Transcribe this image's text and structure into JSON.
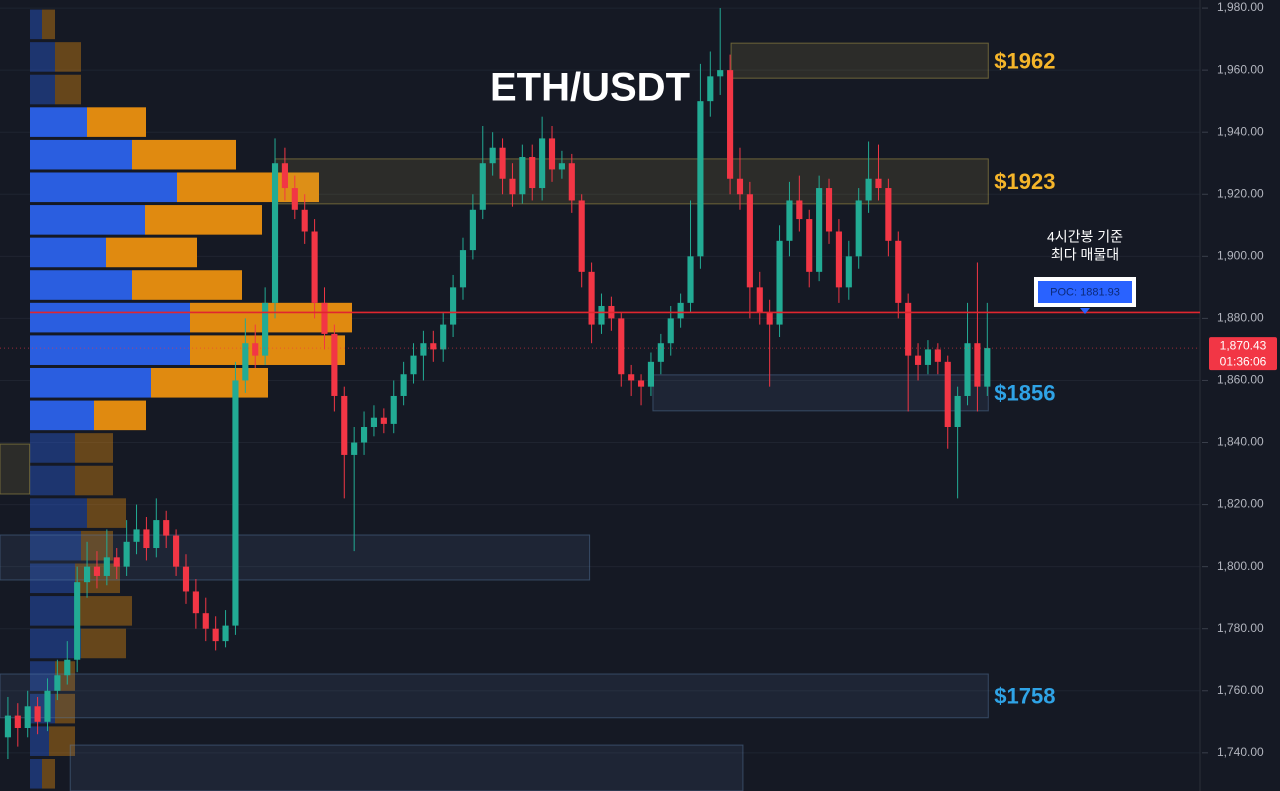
{
  "chart_data": {
    "type": "candlestick",
    "title": "ETH/USDT",
    "colors": {
      "up": "#22ab94",
      "down": "#f23645",
      "background": "#151924",
      "grid": "#1f2430",
      "axis_text": "#b2b5be"
    },
    "xlim": [
      -0.8,
      120.5
    ],
    "ylim": [
      1727.7,
      1982.6
    ],
    "yticks": [
      {
        "value": 1740,
        "label": "1,740.00"
      },
      {
        "value": 1760,
        "label": "1,760.00"
      },
      {
        "value": 1780,
        "label": "1,780.00"
      },
      {
        "value": 1800,
        "label": "1,800.00"
      },
      {
        "value": 1820,
        "label": "1,820.00"
      },
      {
        "value": 1840,
        "label": "1,840.00"
      },
      {
        "value": 1860,
        "label": "1,860.00"
      },
      {
        "value": 1880,
        "label": "1,880.00"
      },
      {
        "value": 1900,
        "label": "1,900.00"
      },
      {
        "value": 1920,
        "label": "1,920.00"
      },
      {
        "value": 1940,
        "label": "1,940.00"
      },
      {
        "value": 1960,
        "label": "1,960.00"
      },
      {
        "value": 1980,
        "label": "1,980.00"
      }
    ],
    "grid": true,
    "open": [
      1745,
      1752,
      1748,
      1755,
      1750,
      1760,
      1765,
      1770,
      1795,
      1800,
      1797,
      1803,
      1800,
      1808,
      1812,
      1806,
      1815,
      1810,
      1800,
      1792,
      1785,
      1780,
      1776,
      1781,
      1860,
      1872,
      1868,
      1885,
      1930,
      1922,
      1915,
      1908,
      1885,
      1875,
      1855,
      1836,
      1840,
      1845,
      1848,
      1846,
      1855,
      1862,
      1868,
      1872,
      1870,
      1878,
      1890,
      1902,
      1915,
      1930,
      1935,
      1925,
      1920,
      1932,
      1922,
      1938,
      1928,
      1930,
      1918,
      1895,
      1878,
      1884,
      1880,
      1862,
      1860,
      1858,
      1866,
      1872,
      1880,
      1885,
      1900,
      1950,
      1958,
      1960,
      1925,
      1920,
      1890,
      1882,
      1878,
      1905,
      1918,
      1912,
      1895,
      1922,
      1908,
      1890,
      1900,
      1918,
      1925,
      1922,
      1905,
      1885,
      1868,
      1865,
      1870,
      1866,
      1845,
      1855,
      1872,
      1858
    ],
    "high": [
      1758,
      1756,
      1760,
      1758,
      1764,
      1770,
      1776,
      1800,
      1808,
      1805,
      1812,
      1806,
      1815,
      1820,
      1816,
      1822,
      1818,
      1812,
      1804,
      1796,
      1790,
      1784,
      1786,
      1866,
      1880,
      1878,
      1890,
      1938,
      1935,
      1926,
      1920,
      1912,
      1890,
      1878,
      1858,
      1845,
      1850,
      1852,
      1851,
      1860,
      1866,
      1872,
      1876,
      1876,
      1882,
      1894,
      1906,
      1920,
      1942,
      1940,
      1938,
      1930,
      1936,
      1936,
      1945,
      1942,
      1934,
      1933,
      1920,
      1898,
      1888,
      1887,
      1882,
      1865,
      1862,
      1869,
      1875,
      1884,
      1888,
      1918,
      1962,
      1966,
      1980,
      1965,
      1935,
      1924,
      1895,
      1886,
      1910,
      1924,
      1926,
      1915,
      1926,
      1925,
      1912,
      1905,
      1922,
      1937,
      1936,
      1925,
      1908,
      1888,
      1872,
      1873,
      1872,
      1868,
      1858,
      1885,
      1898,
      1885
    ],
    "low": [
      1738,
      1742,
      1745,
      1746,
      1747,
      1757,
      1762,
      1766,
      1790,
      1793,
      1794,
      1796,
      1797,
      1804,
      1802,
      1803,
      1806,
      1797,
      1788,
      1780,
      1776,
      1773,
      1774,
      1778,
      1856,
      1864,
      1865,
      1880,
      1918,
      1912,
      1904,
      1880,
      1870,
      1850,
      1822,
      1805,
      1836,
      1842,
      1843,
      1843,
      1852,
      1859,
      1860,
      1866,
      1866,
      1874,
      1886,
      1899,
      1912,
      1926,
      1920,
      1916,
      1917,
      1918,
      1918,
      1924,
      1925,
      1914,
      1890,
      1872,
      1875,
      1876,
      1858,
      1855,
      1852,
      1855,
      1862,
      1868,
      1877,
      1882,
      1896,
      1945,
      1952,
      1920,
      1915,
      1880,
      1878,
      1858,
      1874,
      1900,
      1908,
      1890,
      1892,
      1904,
      1885,
      1886,
      1896,
      1914,
      1918,
      1900,
      1880,
      1850,
      1860,
      1862,
      1862,
      1838,
      1822,
      1852,
      1850,
      1855
    ],
    "close": [
      1752,
      1748,
      1755,
      1750,
      1760,
      1765,
      1770,
      1795,
      1800,
      1797,
      1803,
      1800,
      1808,
      1812,
      1806,
      1815,
      1810,
      1800,
      1792,
      1785,
      1780,
      1776,
      1781,
      1860,
      1872,
      1868,
      1885,
      1930,
      1922,
      1915,
      1908,
      1885,
      1875,
      1855,
      1836,
      1840,
      1845,
      1848,
      1846,
      1855,
      1862,
      1868,
      1872,
      1870,
      1878,
      1890,
      1902,
      1915,
      1930,
      1935,
      1925,
      1920,
      1932,
      1922,
      1938,
      1928,
      1930,
      1918,
      1895,
      1878,
      1884,
      1880,
      1862,
      1860,
      1858,
      1866,
      1872,
      1880,
      1885,
      1900,
      1950,
      1958,
      1960,
      1925,
      1920,
      1890,
      1882,
      1878,
      1905,
      1918,
      1912,
      1895,
      1922,
      1908,
      1890,
      1900,
      1918,
      1925,
      1922,
      1905,
      1885,
      1868,
      1865,
      1870,
      1866,
      1845,
      1855,
      1872,
      1858,
      1870.43
    ],
    "zones": [
      {
        "label": "$1962",
        "label_color": "#f5b52a",
        "color": "#c8b450",
        "low": 1957.4,
        "high": 1968.7,
        "start": 73.1,
        "end": 99.1
      },
      {
        "label": "$1923",
        "label_color": "#f5b52a",
        "color": "#c8b450",
        "low": 1916.9,
        "high": 1931.4,
        "start": 27,
        "end": 99.1
      },
      {
        "label": "$1856",
        "label_color": "#2fa3e6",
        "color": "#5a7ea8",
        "low": 1850.2,
        "high": 1861.8,
        "start": 65.2,
        "end": 99.1
      },
      {
        "label": "$1758",
        "label_color": "#2fa3e6",
        "color": "#5a7ea8",
        "low": 1751.3,
        "high": 1765.4,
        "start": -0.8,
        "end": 99.1
      },
      {
        "color": "#5a7ea8",
        "low": 1795.7,
        "high": 1810.2,
        "start": -0.8,
        "end": 58.8
      },
      {
        "color": "#5a7ea8",
        "low": 1727.7,
        "high": 1742.5,
        "start": 6.3,
        "end": 74.3
      },
      {
        "color": "#c8b450",
        "low": 1823.4,
        "high": 1839.5,
        "start": -0.8,
        "end": 2.2
      }
    ],
    "poc": {
      "value": 1881.93,
      "label": "POC: 1881.93",
      "color": "#e0262f"
    },
    "annotation": [
      "4시간봉 기준",
      "최다 매물대"
    ],
    "last_price": {
      "value": 1870.43,
      "label": "1,870.43",
      "countdown": "01:36:06"
    },
    "volume_profile": {
      "bins": [
        1980,
        1969.5,
        1959,
        1948.5,
        1938,
        1927.5,
        1917,
        1906.5,
        1896,
        1885.5,
        1875,
        1864.5,
        1854,
        1843.5,
        1833,
        1822.5,
        1812,
        1801.5,
        1791,
        1780.5,
        1770,
        1759.5,
        1749,
        1738.5,
        1728
      ],
      "buy": [
        12,
        25,
        25,
        57,
        102,
        147,
        115,
        76,
        102,
        160,
        160,
        121,
        64,
        45,
        45,
        57,
        51,
        45,
        45,
        51,
        25,
        25,
        19,
        12
      ],
      "sell": [
        13,
        26,
        26,
        59,
        104,
        142,
        117,
        91,
        110,
        162,
        155,
        117,
        52,
        38,
        38,
        39,
        32,
        45,
        57,
        45,
        20,
        20,
        26,
        13
      ],
      "buy_color": "#2a5ee0",
      "sell_color": "#e08a10",
      "xlim": [
        0,
        1250
      ],
      "value_area": [
        1843.5,
        1948.5
      ]
    }
  }
}
